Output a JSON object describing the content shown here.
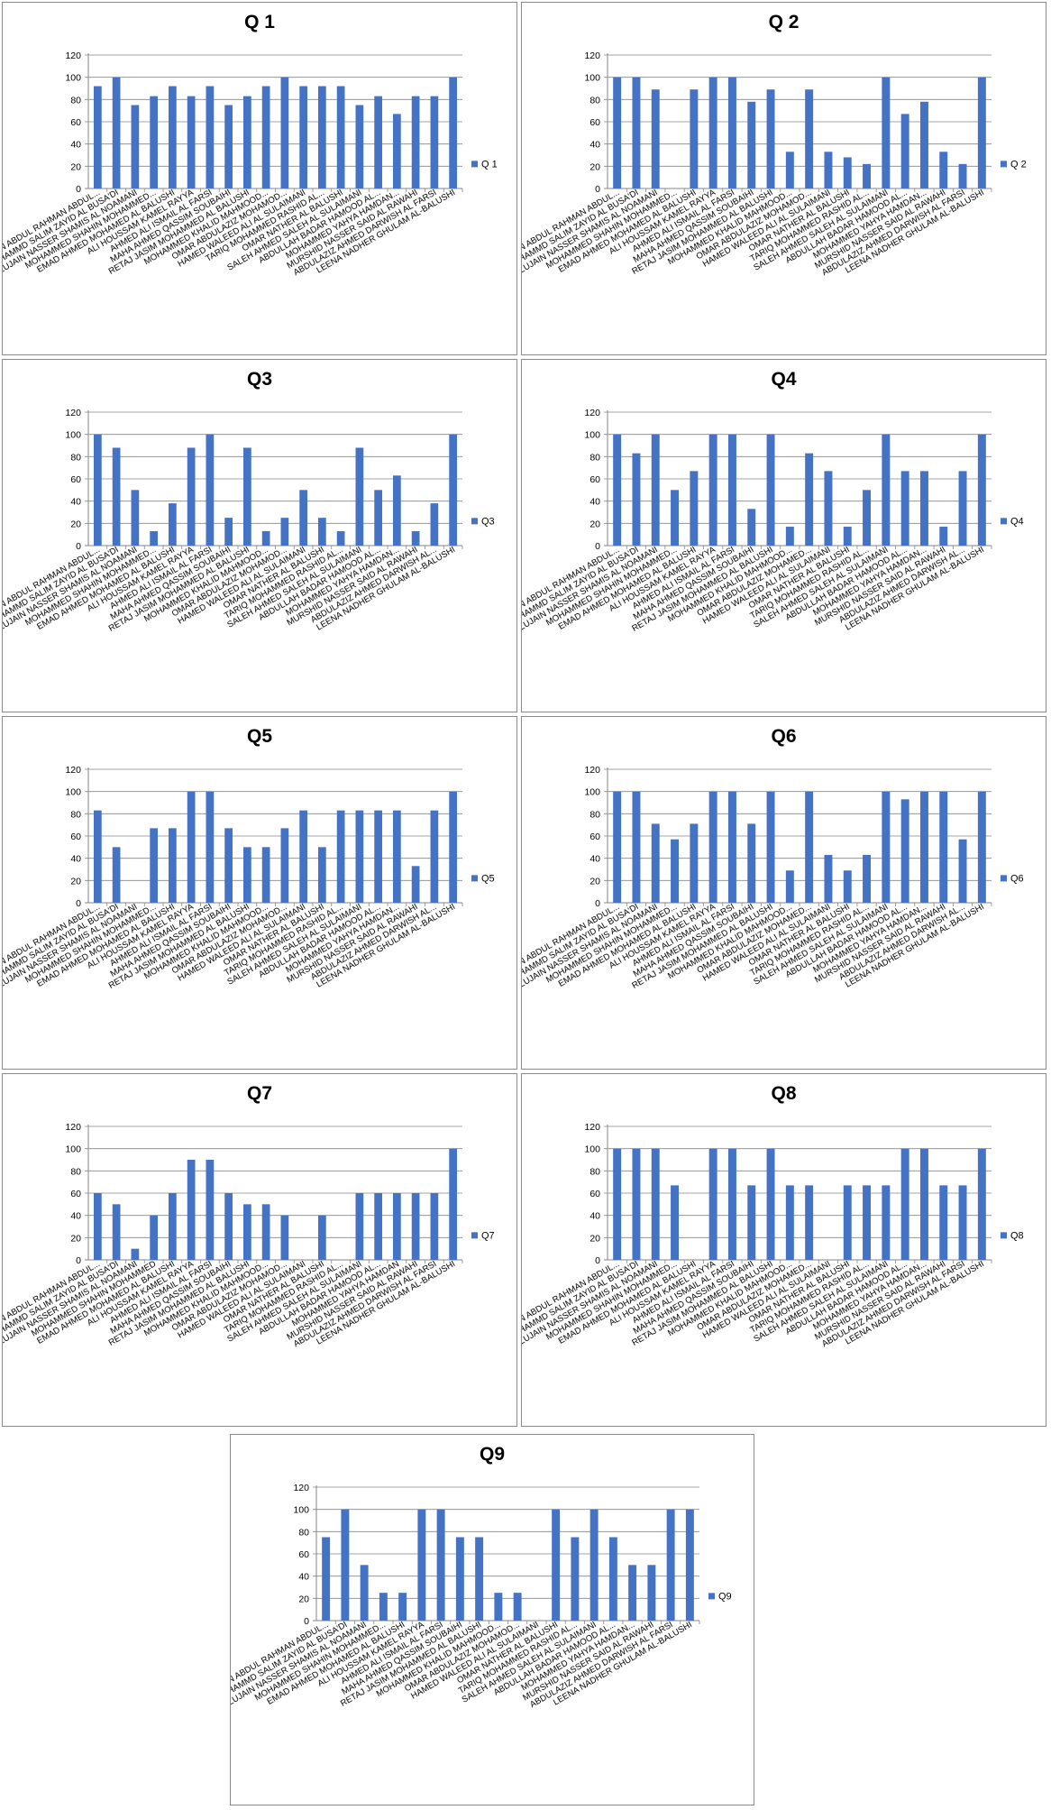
{
  "chart_data": [
    {
      "type": "bar",
      "title": "Q 1",
      "categories": [
        "LUJAIN ABDUL RAHMAN ABDUL...",
        "MOHAMMD SALIM ZAYID AL BUSA'DI",
        "LUJAIN NASSER SHAMIS AL NOAMANI",
        "MOHAMMED SHAHIN MOHAMMED...",
        "EMAD AHMED MOHAMED AL BALUSHI",
        "ALI HOUSSAM KAMEL RAYYA",
        "AHMED ALI ISMAIL AL FARSI",
        "MAHA AHMED QASSIM SOUBAIHI",
        "RETAJ JASIM MOHAMMED AL BALUSHI",
        "MOHAMMED KHALID MAHMOOD...",
        "OMAR ABDULAZIZ MOHAMOD...",
        "HAMED WALEED ALI AL SULAIMANI",
        "TARIQ MOHAMMED RASHID AL...",
        "OMAR NATHER AL BALUSHI",
        "SALEH AHMED SALEH AL SULAIMANI",
        "ABDULLAH BADAR HAMOOD AL...",
        "MOHAMMED YAHYA HAMDAN...",
        "MURSHID NASSER SAID AL RAWAHI",
        "ABDULAZIZ AHMED DARWISH AL FARSI",
        "LEENA NADHER GHULAM AL-BALUSHI"
      ],
      "series": [
        {
          "name": "Q 1",
          "values": [
            92,
            100,
            75,
            83,
            92,
            83,
            92,
            75,
            83,
            92,
            100,
            92,
            92,
            92,
            75,
            83,
            67,
            83,
            83,
            100
          ]
        }
      ],
      "ylim": [
        0,
        120
      ],
      "yticks": [
        0,
        20,
        40,
        60,
        80,
        100,
        120
      ],
      "grid": true,
      "legend_position": "right",
      "bar_color": "#4472C4"
    },
    {
      "type": "bar",
      "title": "Q 2",
      "categories": [
        "LUJAIN ABDUL RAHMAN ABDUL...",
        "MOHAMMD SALIM ZAYID AL BUSA'DI",
        "LUJAIN NASSER SHAMIS AL NOAMANI",
        "MOHAMMED SHAHIN MOHAMMED...",
        "EMAD AHMED MOHAMED AL BALUSHI",
        "ALI HOUSSAM KAMEL RAYYA",
        "AHMED ALI ISMAIL AL FARSI",
        "MAHA AHMED QASSIM SOUBAIHI",
        "RETAJ JASIM MOHAMMED AL BALUSHI",
        "MOHAMMED KHALID MAHMOOD...",
        "OMAR ABDULAZIZ MOHAMOD...",
        "HAMED WALEED ALI AL SULAIMANI",
        "OMAR NATHER AL BALUSHI",
        "TARIQ MOHAMMED RASHID AL...",
        "SALEH AHMED SALEH AL SULAIMANI",
        "ABDULLAH BADAR HAMOOD AL...",
        "MOHAMMED YAHYA HAMDAN...",
        "MURSHID NASSER SAID AL RAWAHI",
        "ABDULAZIZ AHMED DARWISH AL FARSI",
        "LEENA NADHER GHULAM AL-BALUSHI"
      ],
      "series": [
        {
          "name": "Q 2",
          "values": [
            100,
            100,
            89,
            0,
            89,
            100,
            100,
            78,
            89,
            33,
            89,
            33,
            28,
            22,
            100,
            67,
            78,
            33,
            22,
            100
          ]
        }
      ],
      "ylim": [
        0,
        120
      ],
      "yticks": [
        0,
        20,
        40,
        60,
        80,
        100,
        120
      ],
      "grid": true,
      "legend_position": "right",
      "bar_color": "#4472C4"
    },
    {
      "type": "bar",
      "title": "Q3",
      "categories": [
        "LUJAIN ABDUL RAHMAN ABDUL...",
        "MOHAMMD SALIM ZAYID AL BUSA'DI",
        "LUJAIN NASSER SHAMIS AL NOAMANI",
        "MOHAMMED SHAHIN MOHAMMED...",
        "EMAD AHMED MOHAMED AL BALUSHI",
        "ALI HOUSSAM KAMEL RAYYA",
        "AHMED ALI ISMAIL AL FARSI",
        "MAHA AHMED QASSIM SOUBAIHI",
        "RETAJ JASIM MOHAMMED AL BALUSHI",
        "MOHAMMED KHALID MAHMOOD...",
        "OMAR ABDULAZIZ MOHAMOD...",
        "HAMED WALEED ALI AL SULAIMANI",
        "OMAR NATHER AL BALUSHI",
        "TARIQ MOHAMMED RASHID AL...",
        "SALEH AHMED SALEH AL SULAIMANI",
        "ABDULLAH BADAR HAMOOD AL...",
        "MOHAMMED YAHYA HAMDAN...",
        "MURSHID NASSER SAID AL RAWAHI",
        "ABDULAZIZ AHMED DARWISH AL...",
        "LEENA NADHER GHULAM AL-BALUSHI"
      ],
      "series": [
        {
          "name": "Q3",
          "values": [
            100,
            88,
            50,
            13,
            38,
            88,
            100,
            25,
            88,
            13,
            25,
            50,
            25,
            13,
            88,
            50,
            63,
            13,
            38,
            100
          ]
        }
      ],
      "ylim": [
        0,
        120
      ],
      "yticks": [
        0,
        20,
        40,
        60,
        80,
        100,
        120
      ],
      "grid": true,
      "legend_position": "right",
      "bar_color": "#4472C4"
    },
    {
      "type": "bar",
      "title": "Q4",
      "categories": [
        "LUJAIN ABDUL RAHMAN ABDUL...",
        "MOHAMMD SALIM ZAYID AL BUSA'DI",
        "LUJAIN NASSER SHAMIS AL NOAMANI",
        "MOHAMMED SHAHIN MOHAMMED...",
        "EMAD AHMED MOHAMED AL BALUSHI",
        "ALI HOUSSAM KAMEL RAYYA",
        "AHMED ALI ISMAIL AL FARSI",
        "MAHA AHMED QASSIM SOUBAIHI",
        "RETAJ JASIM MOHAMMED AL BALUSHI",
        "MOHAMMED KHALID MAHMOOD...",
        "OMAR ABDULAZIZ MOHAMED...",
        "HAMED WALEED ALI AL SULAIMANI",
        "OMAR NATHER AL BALUSHI",
        "TARIQ MOHAMMED RASHID AL...",
        "SALEH AHMED SALEH AL SULAIMANI",
        "ABDULLAH BADAR HAMOOD AL...",
        "MOHAMMED YAHYA HAMDAN...",
        "MURSHID NASSER SAID AL RAWAHI",
        "ABDULAZIZ AHMED DARWISH AL...",
        "LEENA NADHER GHULAM AL-BALUSHI"
      ],
      "series": [
        {
          "name": "Q4",
          "values": [
            100,
            83,
            100,
            50,
            67,
            100,
            100,
            33,
            100,
            17,
            83,
            67,
            17,
            50,
            100,
            67,
            67,
            17,
            67,
            100
          ]
        }
      ],
      "ylim": [
        0,
        120
      ],
      "yticks": [
        0,
        20,
        40,
        60,
        80,
        100,
        120
      ],
      "grid": true,
      "legend_position": "right",
      "bar_color": "#4472C4"
    },
    {
      "type": "bar",
      "title": "Q5",
      "categories": [
        "LUJAIN ABDUL RAHMAN ABDUL...",
        "MOHAMMD SALIM ZAYID AL BUSA'DI",
        "LUJAIN NASSER SHAMIS AL NOAMANI",
        "MOHAMMED SHAHIN MOHAMMED...",
        "EMAD AHMED MOHAMED AL BALUSHI",
        "ALI HOUSSAM KAMEL RAYYA",
        "AHMED ALI ISMAIL AL FARSI",
        "MAHA AHMED QASSIM SOUBAIHI",
        "RETAJ JASIM MOHAMMED AL BALUSHI",
        "MOHAMMED KHALID MAHMOOD...",
        "OMAR ABDULAZIZ MOHAMOD...",
        "HAMED WALEED ALI AL SULAIMANI",
        "OMAR NATHER AL BALUSHI",
        "TARIQ MOHAMMED RASHID AL...",
        "SALEH AHMED SALEH AL SULAIMANI",
        "ABDULLAH BADAR HAMOOD AL...",
        "MOHAMMED YAHYA HAMDAN...",
        "MURSHID NASSER SAID AL RAWAHI",
        "ABDULAZIZ AHMED DARWISH AL...",
        "LEENA NADHER GHULAM AL-BALUSHI"
      ],
      "series": [
        {
          "name": "Q5",
          "values": [
            83,
            50,
            0,
            67,
            67,
            100,
            100,
            67,
            50,
            50,
            67,
            83,
            50,
            83,
            83,
            83,
            83,
            33,
            83,
            100
          ]
        }
      ],
      "ylim": [
        0,
        120
      ],
      "yticks": [
        0,
        20,
        40,
        60,
        80,
        100,
        120
      ],
      "grid": true,
      "legend_position": "right",
      "bar_color": "#4472C4"
    },
    {
      "type": "bar",
      "title": "Q6",
      "categories": [
        "LUJAIN ABDUL RAHMAN ABDUL...",
        "MOHAMMD SALIM ZAYID AL BUSA'DI",
        "LUJAIN NASSER SHAMIS AL NOAMANI",
        "MOHAMMED SHAHIN MOHAMMED...",
        "EMAD AHMED MOHAMED AL BALUSHI",
        "ALI HOUSSAM KAMEL RAYYA",
        "AHMED ALI ISMAIL AL FARSI",
        "MAHA AHMED QASSIM SOUBAIHI",
        "RETAJ JASIM MOHAMMED AL BALUSHI",
        "MOHAMMED KHALID MAHMOOD...",
        "OMAR ABDULAZIZ MOHAMED...",
        "HAMED WALEED ALI AL SULAIMANI",
        "OMAR NATHER AL BALUSHI",
        "TARIQ MOHAMMED RASHID AL...",
        "SALEH AHMED SALEH AL SULAIMANI",
        "ABDULLAH BADAR HAMOOD AL...",
        "MOHAMMED YAHYA HAMDAN...",
        "MURSHID NASSER SAID AL RAWAHI",
        "ABDULAZIZ AHMED DARWISH AL...",
        "LEENA NADHER GHULAM AL-BALUSHI"
      ],
      "series": [
        {
          "name": "Q6",
          "values": [
            100,
            100,
            71,
            57,
            71,
            100,
            100,
            71,
            100,
            29,
            100,
            43,
            29,
            43,
            100,
            93,
            100,
            100,
            57,
            100
          ]
        }
      ],
      "ylim": [
        0,
        120
      ],
      "yticks": [
        0,
        20,
        40,
        60,
        80,
        100,
        120
      ],
      "grid": true,
      "legend_position": "right",
      "bar_color": "#4472C4"
    },
    {
      "type": "bar",
      "title": "Q7",
      "categories": [
        "LUJAIN ABDUL RAHMAN ABDUL...",
        "MOHAMMD SALIM ZAYID AL BUSA'DI",
        "LUJAIN NASSER SHAMIS AL NOAMANI",
        "MOHAMMED SHAHIN MOHAMMED",
        "EMAD AHMED MOHAMED AL BALUSHI",
        "ALI HOUSSAM KAMEL RAYYA",
        "AHMED ALI ISMAIL AL FARSI",
        "MAHA AHMED QASSIM SOUBAIHI",
        "RETAJ JASIM MOHAMMED AL BALUSHI",
        "MOHAMMED KHALID MAHMOOD...",
        "OMAR ABDULAZIZ MOHAMOD...",
        "HAMED WALEED ALI AL SULAIMANI",
        "OMAR NATHER AL BALUSHI",
        "TARIQ MOHAMMED RASHID AL...",
        "SALEH AHMED SALEH AL SULAIMANI",
        "ABDULLAH BADAR HAMOOD AL...",
        "MOHAMMED YAHYA HAMDAN",
        "MURSHID NASSER SAID AL RAWAHI",
        "ABDULAZIZ AHMED DARWISH AL FARSI",
        "LEENA NADHER GHULAM AL-BALUSHI"
      ],
      "series": [
        {
          "name": "Q7",
          "values": [
            60,
            50,
            10,
            40,
            60,
            90,
            90,
            60,
            50,
            50,
            40,
            0,
            40,
            0,
            60,
            60,
            60,
            60,
            60,
            100
          ]
        }
      ],
      "ylim": [
        0,
        120
      ],
      "yticks": [
        0,
        20,
        40,
        60,
        80,
        100,
        120
      ],
      "grid": true,
      "legend_position": "right",
      "bar_color": "#4472C4"
    },
    {
      "type": "bar",
      "title": "Q8",
      "categories": [
        "LUJAIN ABDUL RAHMAN ABDUL...",
        "MOHAMMD SALIM ZAYID AL BUSA'DI",
        "LUJAIN NASSER SHAMIS AL NOAMANI",
        "MOHAMMED SHAHIN MOHAMMED...",
        "EMAD AHMED MOHAMED AL BALUSHI",
        "ALI HOUSSAM KAMEL RAYYA",
        "AHMED ALI ISMAIL AL FARSI",
        "MAHA AHMED QASSIM SOUBAIHI",
        "RETAJ JASIM MOHAMMED AL BALUSHI",
        "MOHAMMED KHALID MAHMOOD...",
        "OMAR ABDULAZIZ MOHAMED...",
        "HAMED WALEED ALI AL SULAIMANI",
        "OMAR NATHER AL BALUSHI",
        "TARIQ MOHAMMED RASHID AL...",
        "SALEH AHMED SALEH AL SULAIMANI",
        "ABDULLAH BADAR HAMOOD AL...",
        "MOHAMMED YAHYA HAMDAN...",
        "MURSHID NASSER SAID AL RAWAHI",
        "ABDULAZIZ AHMED DARWISH AL FARSI",
        "LEENA NADHER GHULAM AL-BALUSHI"
      ],
      "series": [
        {
          "name": "Q8",
          "values": [
            100,
            100,
            100,
            67,
            0,
            100,
            100,
            67,
            100,
            67,
            67,
            0,
            67,
            67,
            67,
            100,
            100,
            67,
            67,
            100
          ]
        }
      ],
      "ylim": [
        0,
        120
      ],
      "yticks": [
        0,
        20,
        40,
        60,
        80,
        100,
        120
      ],
      "grid": true,
      "legend_position": "right",
      "bar_color": "#4472C4"
    },
    {
      "type": "bar",
      "title": "Q9",
      "categories": [
        "LUJAIN ABDUL RAHMAN ABDUL...",
        "MOHAMMD SALIM ZAYID AL BUSA'DI",
        "LUJAIN NASSER SHAMIS AL NOAMANI",
        "MOHAMMED SHAHIN MOHAMMED...",
        "EMAD AHMED MOHAMED AL BALUSHI",
        "ALI HOUSSAM KAMEL RAYYA",
        "AHMED ALI ISMAIL AL FARSI",
        "MAHA AHMED QASSIM SOUBAIHI",
        "RETAJ JASIM MOHAMMED AL BALUSHI",
        "MOHAMMED KHALID MAHMOOD...",
        "OMAR ABDULAZIZ MOHAMOD...",
        "HAMED WALEED ALI AL SULAIMANI",
        "OMAR NATHER AL BALUSHI",
        "TARIQ MOHAMMED RASHID AL...",
        "SALEH AHMED SALEH AL SULAIMANI",
        "ABDULLAH BADAR HAMOOD AL...",
        "MOHAMMED YAHYA HAMDAN...",
        "MURSHID NASSER SAID AL RAWAHI",
        "ABDULAZIZ AHMED DARWISH AL FARSI",
        "LEENA NADHER GHULAM AL-BALUSHI"
      ],
      "series": [
        {
          "name": "Q9",
          "values": [
            75,
            100,
            50,
            25,
            25,
            100,
            100,
            75,
            75,
            25,
            25,
            0,
            100,
            75,
            100,
            75,
            50,
            50,
            100,
            100
          ]
        }
      ],
      "ylim": [
        0,
        120
      ],
      "yticks": [
        0,
        20,
        40,
        60,
        80,
        100,
        120
      ],
      "grid": true,
      "legend_position": "right",
      "bar_color": "#4472C4"
    }
  ]
}
